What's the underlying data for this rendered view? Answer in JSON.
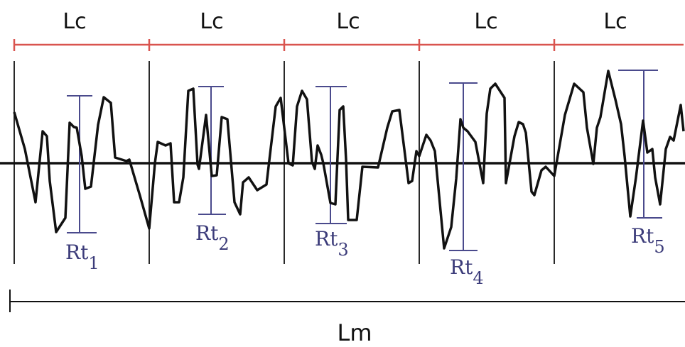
{
  "labels": {
    "sampling_length": "Lc",
    "evaluation_length": "Lm",
    "rt_symbol": "Rt",
    "rt_subscripts": [
      "1",
      "2",
      "3",
      "4",
      "5"
    ]
  },
  "segments": 5,
  "colors": {
    "dimension_line": "#d9544f",
    "profile": "#111111",
    "rt_bar": "#4a4a8c",
    "text": "#111111"
  }
}
